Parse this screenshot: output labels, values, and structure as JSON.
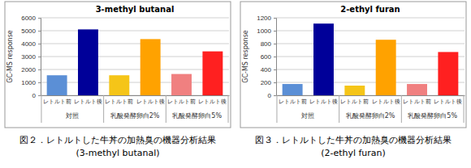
{
  "chart_data": [
    {
      "type": "bar",
      "title": "3-methyl butanal",
      "y_label": "GC-MS response",
      "categories": [
        "レトルト前",
        "レトルト後",
        "レトルト前",
        "レトルト後",
        "レトルト前",
        "レトルト後"
      ],
      "groups": [
        "対照",
        "乳酸発酵卵白2%",
        "乳酸発酵卵白5%"
      ],
      "values": [
        1550,
        5100,
        1550,
        4350,
        1650,
        3400
      ],
      "colors": [
        "#5b8fd6",
        "#000099",
        "#f5c518",
        "#ffa200",
        "#f08080",
        "#ff2020"
      ],
      "ylim": [
        0,
        6000
      ],
      "yticks": [
        0,
        1000,
        2000,
        3000,
        4000,
        5000,
        6000
      ],
      "grid": true,
      "caption": [
        "図２．レトルトした牛丼の加熱臭の機器分析結果",
        "(3-methyl butanal)"
      ]
    },
    {
      "type": "bar",
      "title": "2-ethyl furan",
      "y_label": "GC-MS response",
      "categories": [
        "レトルト前",
        "レトルト後",
        "レトルト前",
        "レトルト後",
        "レトルト前",
        "レトルト後"
      ],
      "groups": [
        "対照",
        "乳酸発酵卵白2%",
        "乳酸発酵卵白5%"
      ],
      "values": [
        175,
        1110,
        150,
        860,
        175,
        670
      ],
      "colors": [
        "#5b8fd6",
        "#000099",
        "#f5c518",
        "#ffa200",
        "#f08080",
        "#ff2020"
      ],
      "ylim": [
        0,
        1200
      ],
      "yticks": [
        0,
        200,
        400,
        600,
        800,
        1000,
        1200
      ],
      "grid": true,
      "caption": [
        "図３．レトルトした牛丼の加熱臭の機器分析結果",
        "(2-ethyl furan)"
      ]
    }
  ]
}
